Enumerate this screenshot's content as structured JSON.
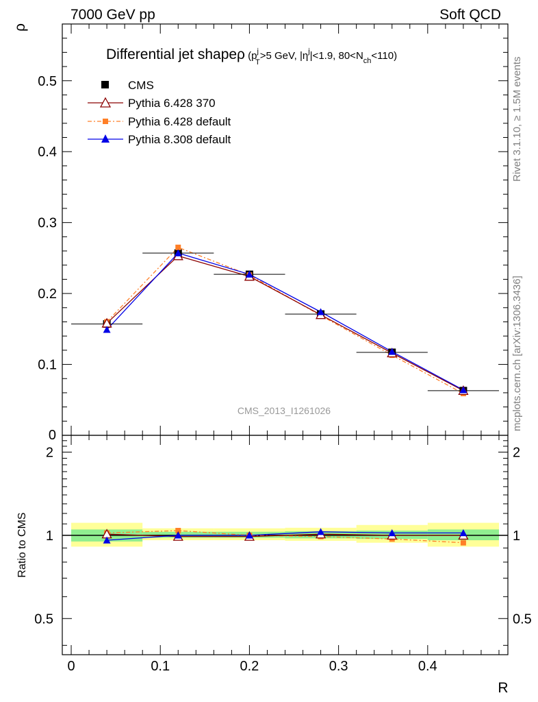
{
  "header": {
    "left": "7000 GeV pp",
    "right": "Soft QCD"
  },
  "side_labels": {
    "rivet": "Rivet 3.1.10, ≥ 1.5M events",
    "mcplots": "mcplots.cern.ch [arXiv:1306.3436]"
  },
  "analysis_tag": "CMS_2013_I1261026",
  "colors": {
    "cms": "#000000",
    "pythia6_370": "#8b0000",
    "pythia6_default": "#ff7f27",
    "pythia8": "#0000e6",
    "band_inner": "#90ee90",
    "band_outer": "#ffff99"
  },
  "chart_data": [
    {
      "type": "line",
      "title": "Differential jet shapeρ (p",
      "title_parts": {
        "main": "Differential jet shapeρ",
        "open": " (p",
        "pt_sup": "j",
        "pt_sub": "T",
        "pt_rest": ">5 GeV, |η",
        "eta_sup": "j",
        "eta_rest": "|<1.9, 80<N",
        "n_sub": "ch",
        "close": "<110)"
      },
      "xlabel": "R",
      "ylabel": "ρ",
      "xlim": [
        -0.01,
        0.49
      ],
      "ylim": [
        0,
        0.58
      ],
      "yticks": [
        0.1,
        0.2,
        0.3,
        0.4,
        0.5
      ],
      "ytick_labels": [
        "0.1",
        "0.2",
        "0.3",
        "0.4",
        "0.5"
      ],
      "y_zero_label": "0",
      "x": [
        0.04,
        0.12,
        0.2,
        0.28,
        0.36,
        0.44
      ],
      "series": [
        {
          "name": "CMS",
          "values": [
            0.157,
            0.257,
            0.227,
            0.171,
            0.117,
            0.063
          ],
          "xerr": 0.04
        },
        {
          "name": "Pythia 6.428 370",
          "values": [
            0.158,
            0.253,
            0.224,
            0.17,
            0.116,
            0.063
          ]
        },
        {
          "name": "Pythia 6.428 default",
          "values": [
            0.16,
            0.265,
            0.226,
            0.169,
            0.113,
            0.059
          ]
        },
        {
          "name": "Pythia 8.308 default",
          "values": [
            0.149,
            0.257,
            0.227,
            0.174,
            0.118,
            0.064
          ]
        }
      ],
      "legend_position": "top-left"
    },
    {
      "type": "line",
      "ylabel": "Ratio to CMS",
      "xlabel": "R",
      "xlim": [
        -0.01,
        0.49
      ],
      "ylim": [
        0.37,
        2.3
      ],
      "log_y": true,
      "yticks": [
        0.5,
        1,
        2
      ],
      "ytick_labels": [
        "0.5",
        "1",
        "2"
      ],
      "xticks": [
        0,
        0.1,
        0.2,
        0.3,
        0.4
      ],
      "xtick_labels": [
        "0",
        "0.1",
        "0.2",
        "0.3",
        "0.4"
      ],
      "x": [
        0.04,
        0.12,
        0.2,
        0.28,
        0.36,
        0.44
      ],
      "bands": {
        "edges": [
          0,
          0.08,
          0.16,
          0.24,
          0.32,
          0.4,
          0.48
        ],
        "inner": [
          [
            0.95,
            1.05
          ],
          [
            0.98,
            1.03
          ],
          [
            0.98,
            1.03
          ],
          [
            0.975,
            1.035
          ],
          [
            0.97,
            1.04
          ],
          [
            0.96,
            1.05
          ]
        ],
        "outer": [
          [
            0.91,
            1.11
          ],
          [
            0.96,
            1.06
          ],
          [
            0.96,
            1.06
          ],
          [
            0.955,
            1.065
          ],
          [
            0.94,
            1.09
          ],
          [
            0.91,
            1.11
          ]
        ]
      },
      "series": [
        {
          "name": "Pythia 6.428 370",
          "values": [
            1.01,
            0.99,
            0.99,
            1.01,
            1.0,
            1.0
          ]
        },
        {
          "name": "Pythia 6.428 default",
          "values": [
            1.02,
            1.04,
            1.0,
            0.99,
            0.97,
            0.94
          ]
        },
        {
          "name": "Pythia 8.308 default",
          "values": [
            0.96,
            1.0,
            1.0,
            1.03,
            1.02,
            1.02
          ]
        }
      ]
    }
  ]
}
